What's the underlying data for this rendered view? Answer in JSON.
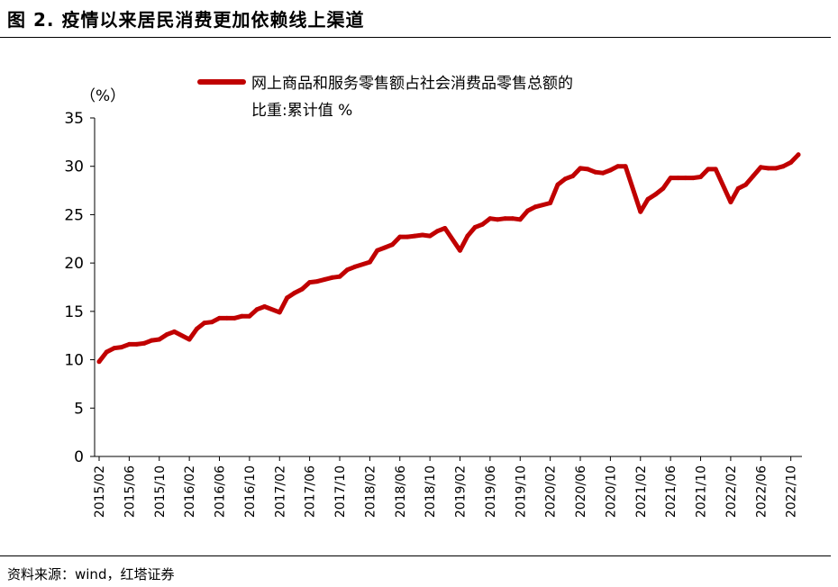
{
  "figure": {
    "title": "图 2. 疫情以来居民消费更加依赖线上渠道",
    "source": "资料来源：wind，红塔证券"
  },
  "chart_data": {
    "type": "line",
    "ylabel": "（%）",
    "ylim": [
      0,
      35
    ],
    "yticks": [
      0,
      5,
      10,
      15,
      20,
      25,
      30,
      35
    ],
    "xticks": [
      "2015/02",
      "2015/06",
      "2015/10",
      "2016/02",
      "2016/06",
      "2016/10",
      "2017/02",
      "2017/06",
      "2017/10",
      "2018/02",
      "2018/06",
      "2018/10",
      "2019/02",
      "2019/06",
      "2019/10",
      "2020/02",
      "2020/06",
      "2020/10",
      "2021/02",
      "2021/06",
      "2021/10",
      "2022/02",
      "2022/06",
      "2022/10"
    ],
    "grid": false,
    "legend_position": "top",
    "color": "#c00000",
    "series": [
      {
        "name": "网上商品和服务零售额占社会消费品零售总额的比重:累计值 %",
        "x": [
          "2015/02",
          "2015/03",
          "2015/04",
          "2015/05",
          "2015/06",
          "2015/07",
          "2015/08",
          "2015/09",
          "2015/10",
          "2015/11",
          "2015/12",
          "2016/02",
          "2016/03",
          "2016/04",
          "2016/05",
          "2016/06",
          "2016/07",
          "2016/08",
          "2016/09",
          "2016/10",
          "2016/11",
          "2016/12",
          "2017/02",
          "2017/03",
          "2017/04",
          "2017/05",
          "2017/06",
          "2017/07",
          "2017/08",
          "2017/09",
          "2017/10",
          "2017/11",
          "2017/12",
          "2018/02",
          "2018/03",
          "2018/04",
          "2018/05",
          "2018/06",
          "2018/07",
          "2018/08",
          "2018/09",
          "2018/10",
          "2018/11",
          "2018/12",
          "2019/02",
          "2019/03",
          "2019/04",
          "2019/05",
          "2019/06",
          "2019/07",
          "2019/08",
          "2019/09",
          "2019/10",
          "2019/11",
          "2019/12",
          "2020/02",
          "2020/03",
          "2020/04",
          "2020/05",
          "2020/06",
          "2020/07",
          "2020/08",
          "2020/09",
          "2020/10",
          "2020/11",
          "2020/12",
          "2021/02",
          "2021/03",
          "2021/04",
          "2021/05",
          "2021/06",
          "2021/07",
          "2021/08",
          "2021/09",
          "2021/10",
          "2021/11",
          "2021/12",
          "2022/02",
          "2022/03",
          "2022/04",
          "2022/05",
          "2022/06",
          "2022/07",
          "2022/08",
          "2022/09",
          "2022/10",
          "2022/11"
        ],
        "values": [
          9.8,
          10.8,
          11.2,
          11.3,
          11.6,
          11.6,
          11.7,
          12.0,
          12.1,
          12.6,
          12.9,
          12.1,
          13.2,
          13.8,
          13.9,
          14.3,
          14.3,
          14.3,
          14.5,
          14.5,
          15.2,
          15.5,
          14.9,
          16.4,
          16.9,
          17.3,
          18.0,
          18.1,
          18.3,
          18.5,
          18.6,
          19.3,
          19.6,
          20.1,
          21.3,
          21.6,
          21.9,
          22.7,
          22.7,
          22.8,
          22.9,
          22.8,
          23.3,
          23.6,
          21.3,
          22.8,
          23.7,
          24.0,
          24.6,
          24.5,
          24.6,
          24.6,
          24.5,
          25.4,
          25.8,
          26.2,
          28.1,
          28.7,
          29.0,
          29.8,
          29.7,
          29.4,
          29.3,
          29.6,
          30.0,
          30.0,
          25.3,
          26.6,
          27.1,
          27.7,
          28.8,
          28.8,
          28.8,
          28.8,
          28.9,
          29.7,
          29.7,
          26.3,
          27.7,
          28.1,
          29.0,
          29.9,
          29.8,
          29.8,
          30.0,
          30.4,
          31.2
        ]
      }
    ]
  }
}
